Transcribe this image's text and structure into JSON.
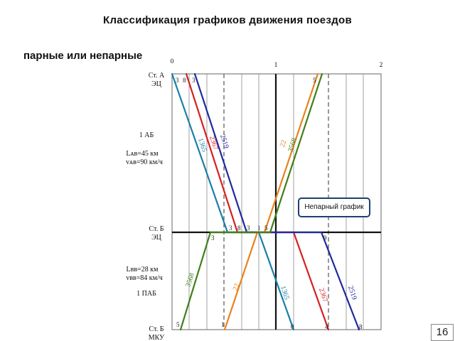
{
  "header": {
    "title": "Классификация графиков движения поездов",
    "subtitle": "парные или непарные"
  },
  "time_axis": {
    "ticks": [
      "0",
      "1",
      "2"
    ]
  },
  "stations": {
    "a_name": "Ст. А",
    "a_code": "ЭЦ",
    "b_name": "Ст. Б",
    "b_code": "ЭЦ",
    "c_name": "Ст. Б",
    "c_code": "МКУ"
  },
  "segments": {
    "ab_block": "1 АБ",
    "ab_length": "Lᴀʙ=45 км",
    "ab_speed": "vᴀʙ=90 км/ч",
    "bb_length": "Lʙʙ=28 км",
    "bb_speed": "vʙʙ=84 км/ч",
    "bb_block": "1 ПАБ"
  },
  "colors": {
    "teal": "#1a7fa8",
    "red": "#d62020",
    "navy": "#1f2a9e",
    "orange": "#e8821e",
    "green": "#3f7f1a"
  },
  "trains": [
    {
      "label": "1365",
      "color": "teal"
    },
    {
      "label": "2367",
      "color": "red"
    },
    {
      "label": "2519",
      "color": "navy"
    },
    {
      "label": "22",
      "color": "orange"
    },
    {
      "label": "3568",
      "color": "green"
    },
    {
      "label": "3568",
      "color": "green"
    },
    {
      "label": "22",
      "color": "orange"
    },
    {
      "label": "1365",
      "color": "teal"
    },
    {
      "label": "2367",
      "color": "red"
    },
    {
      "label": "2519",
      "color": "navy"
    }
  ],
  "minute_marks": {
    "a_3": "3",
    "a_8": "8",
    "a_3b": "3",
    "a_5": "5",
    "b_3": "3",
    "b_8": "8",
    "b_3b": "3",
    "b_1": "1",
    "b_5": "5",
    "b_3c": "3",
    "b_9": "9",
    "c_5": "5",
    "c_1": "1",
    "c_0": "0",
    "c_4": "4",
    "c_8": "8"
  },
  "callout": "Непарный график",
  "page_number": "16"
}
